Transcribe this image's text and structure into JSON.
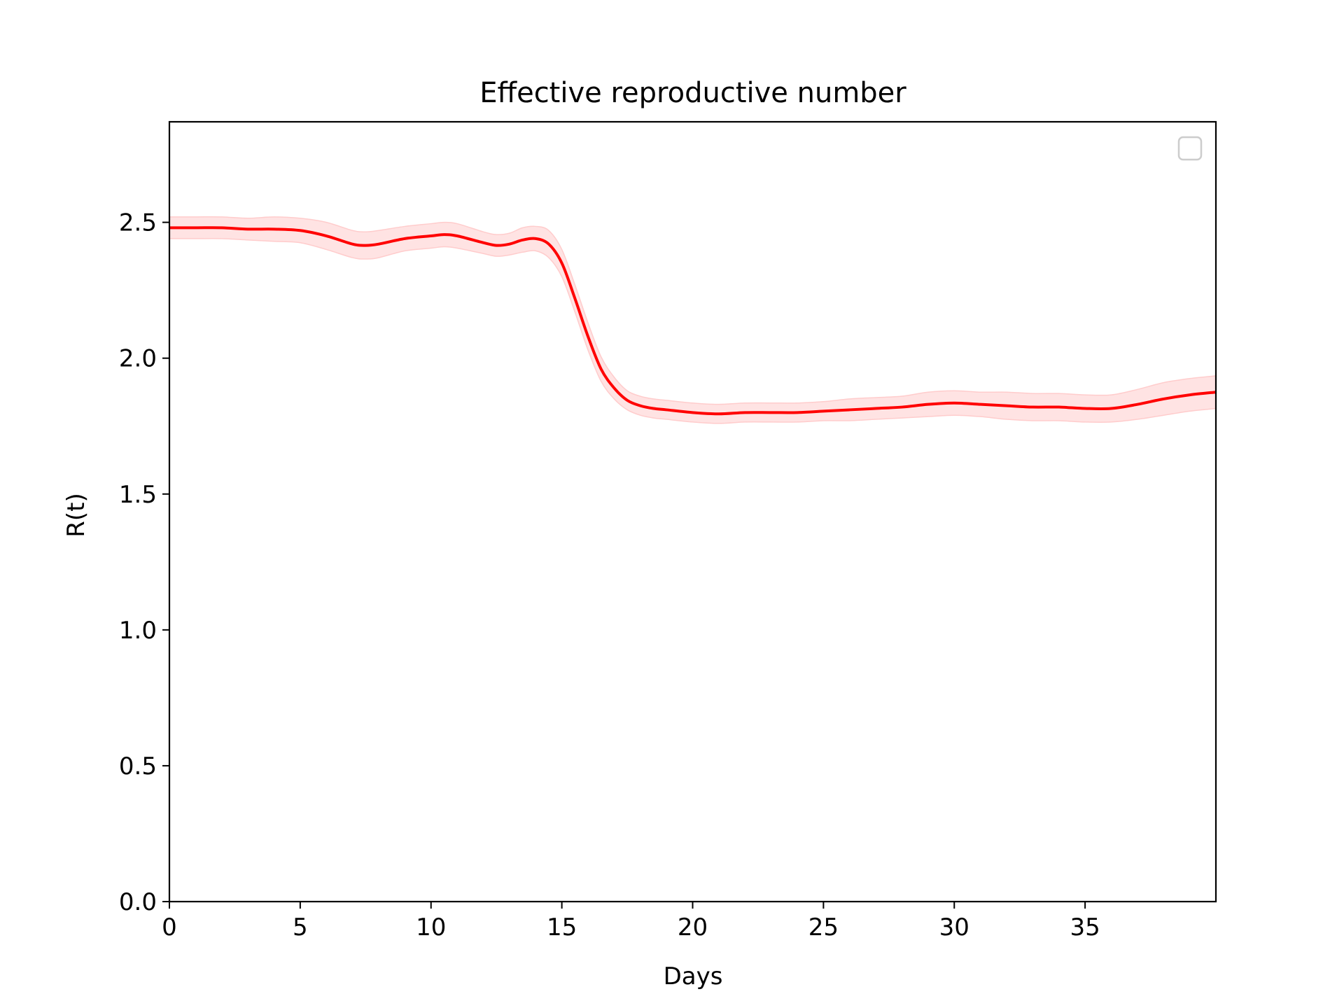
{
  "chart_data": {
    "type": "line",
    "title": "Effective reproductive number",
    "xlabel": "Days",
    "ylabel": "R(t)",
    "xlim": [
      0,
      40
    ],
    "ylim": [
      0,
      2.87
    ],
    "x_ticks": [
      "0",
      "5",
      "10",
      "15",
      "20",
      "25",
      "30",
      "35"
    ],
    "x_tick_values": [
      0,
      5,
      10,
      15,
      20,
      25,
      30,
      35
    ],
    "y_ticks": [
      "0.0",
      "0.5",
      "1.0",
      "1.5",
      "2.0",
      "2.5"
    ],
    "y_tick_values": [
      0,
      0.5,
      1.0,
      1.5,
      2.0,
      2.5
    ],
    "grid": false,
    "legend": {
      "placement": "top-right",
      "entries": []
    },
    "colors": {
      "line": "#ff0000",
      "band": "#ffcccc",
      "axes": "#000000"
    },
    "series": [
      {
        "x": [
          0,
          1,
          2,
          3,
          4,
          5,
          6,
          7,
          7.5,
          8,
          9,
          10,
          10.5,
          11,
          12,
          12.5,
          13,
          13.5,
          14,
          14.5,
          15,
          15.5,
          16,
          16.5,
          17,
          17.5,
          18,
          18.5,
          19,
          20,
          21,
          22,
          23,
          24,
          25,
          26,
          27,
          28,
          29,
          30,
          31,
          32,
          33,
          34,
          35,
          36,
          37,
          38,
          39,
          40
        ],
        "y": [
          2.48,
          2.48,
          2.48,
          2.475,
          2.475,
          2.47,
          2.45,
          2.42,
          2.415,
          2.42,
          2.44,
          2.45,
          2.455,
          2.45,
          2.425,
          2.415,
          2.42,
          2.435,
          2.44,
          2.42,
          2.35,
          2.22,
          2.08,
          1.96,
          1.89,
          1.845,
          1.825,
          1.815,
          1.81,
          1.8,
          1.795,
          1.8,
          1.8,
          1.8,
          1.805,
          1.81,
          1.815,
          1.82,
          1.83,
          1.835,
          1.83,
          1.825,
          1.82,
          1.82,
          1.815,
          1.815,
          1.83,
          1.85,
          1.865,
          1.875
        ],
        "band_half_width": [
          0.04,
          0.04,
          0.04,
          0.04,
          0.045,
          0.045,
          0.05,
          0.05,
          0.05,
          0.05,
          0.045,
          0.045,
          0.045,
          0.045,
          0.04,
          0.04,
          0.04,
          0.045,
          0.045,
          0.05,
          0.05,
          0.05,
          0.05,
          0.045,
          0.04,
          0.035,
          0.035,
          0.035,
          0.035,
          0.035,
          0.035,
          0.035,
          0.035,
          0.035,
          0.035,
          0.04,
          0.04,
          0.04,
          0.045,
          0.045,
          0.045,
          0.05,
          0.05,
          0.05,
          0.05,
          0.05,
          0.055,
          0.06,
          0.06,
          0.06
        ]
      }
    ]
  }
}
